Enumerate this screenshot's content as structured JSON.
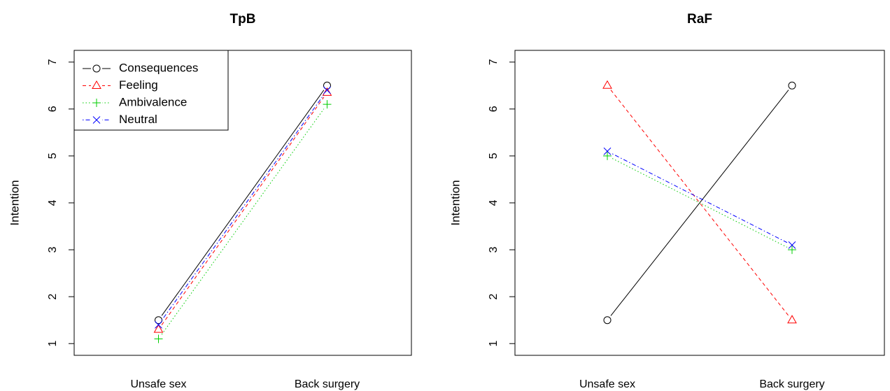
{
  "chart_data": [
    {
      "type": "line",
      "title": "TpB",
      "xlabel": "",
      "ylabel": "Intention",
      "ylim": [
        0.75,
        7.25
      ],
      "yticks": [
        1,
        2,
        3,
        4,
        5,
        6,
        7
      ],
      "categories": [
        "Unsafe sex",
        "Back surgery"
      ],
      "legend": "top-left",
      "series": [
        {
          "name": "Consequences",
          "values": [
            1.5,
            6.5
          ],
          "color": "#000000",
          "marker": "circle",
          "dash": "solid"
        },
        {
          "name": "Feeling",
          "values": [
            1.3,
            6.35
          ],
          "color": "#ff0000",
          "marker": "triangle",
          "dash": "dashed"
        },
        {
          "name": "Ambivalence",
          "values": [
            1.1,
            6.1
          ],
          "color": "#00cd00",
          "marker": "plus",
          "dash": "dotted"
        },
        {
          "name": "Neutral",
          "values": [
            1.4,
            6.4
          ],
          "color": "#0000ff",
          "marker": "cross",
          "dash": "dotdash"
        }
      ]
    },
    {
      "type": "line",
      "title": "RaF",
      "xlabel": "",
      "ylabel": "Intention",
      "ylim": [
        0.75,
        7.25
      ],
      "yticks": [
        1,
        2,
        3,
        4,
        5,
        6,
        7
      ],
      "categories": [
        "Unsafe sex",
        "Back surgery"
      ],
      "legend": "none",
      "series": [
        {
          "name": "Consequences",
          "values": [
            1.5,
            6.5
          ],
          "color": "#000000",
          "marker": "circle",
          "dash": "solid"
        },
        {
          "name": "Feeling",
          "values": [
            6.5,
            1.5
          ],
          "color": "#ff0000",
          "marker": "triangle",
          "dash": "dashed"
        },
        {
          "name": "Ambivalence",
          "values": [
            5.0,
            3.0
          ],
          "color": "#00cd00",
          "marker": "plus",
          "dash": "dotted"
        },
        {
          "name": "Neutral",
          "values": [
            5.1,
            3.1
          ],
          "color": "#0000ff",
          "marker": "cross",
          "dash": "dotdash"
        }
      ]
    }
  ]
}
